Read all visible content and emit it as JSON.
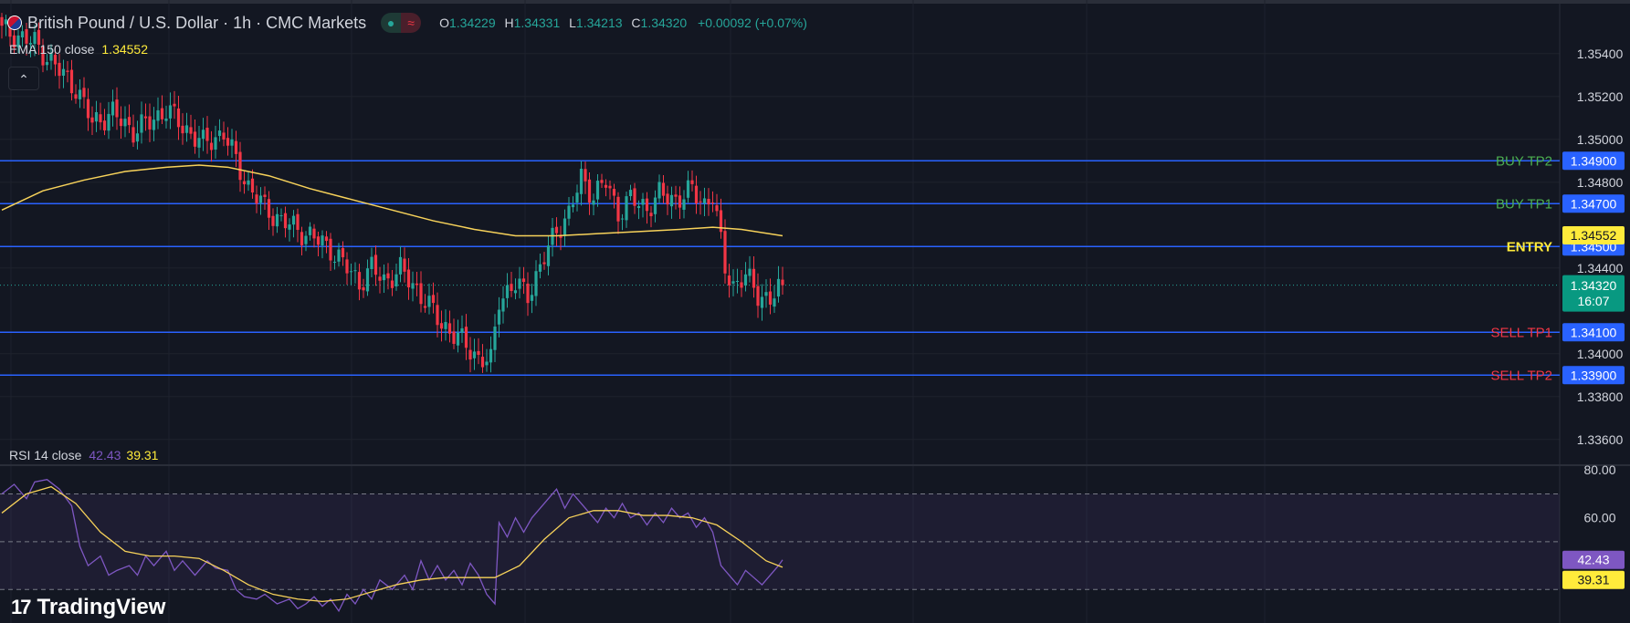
{
  "header": {
    "symbol_title": "British Pound / U.S. Dollar · 1h · CMC Markets",
    "open_label": "O",
    "open": "1.34229",
    "high_label": "H",
    "high": "1.34331",
    "low_label": "L",
    "low": "1.34213",
    "close_label": "C",
    "close": "1.34320",
    "change": "+0.00092 (+0.07%)"
  },
  "ema_legend": {
    "label": "EMA 150 close",
    "value": "1.34552"
  },
  "rsi_legend": {
    "label": "RSI 14 close",
    "value": "42.43",
    "ma_value": "39.31"
  },
  "branding": {
    "logo_text": "TradingView",
    "logo_mark": "17"
  },
  "colors": {
    "background": "#131722",
    "up": "#26a69a",
    "down": "#f23645",
    "ema": "#f7d25a",
    "level_line": "#2962ff",
    "rsi": "#7e57c2",
    "rsi_ma": "#f7d25a",
    "buy_label": "#4caf50",
    "sell_label": "#f23645",
    "entry_label": "#ffeb3b"
  },
  "chart_data": [
    {
      "type": "candlestick",
      "title": "British Pound / U.S. Dollar · 1h · CMC Markets",
      "y_ticks": [
        "1.35400",
        "1.35200",
        "1.35000",
        "1.34800",
        "1.34400",
        "1.34000",
        "1.33800",
        "1.33600"
      ],
      "y_tick_values": [
        1.354,
        1.352,
        1.35,
        1.348,
        1.344,
        1.34,
        1.338,
        1.336
      ],
      "ylim": [
        1.3348,
        1.3565
      ],
      "grid": true,
      "current_price": {
        "value": 1.3432,
        "label": "1.34320",
        "countdown": "16:07"
      },
      "ema150_last": {
        "value": 1.34552,
        "label": "1.34552"
      },
      "levels": [
        {
          "name": "BUY TP2",
          "value": 1.349,
          "label": "1.34900",
          "side": "buy"
        },
        {
          "name": "BUY TP1",
          "value": 1.347,
          "label": "1.34700",
          "side": "buy"
        },
        {
          "name": "ENTRY",
          "value": 1.345,
          "label": "1.34500",
          "side": "entry"
        },
        {
          "name": "SELL TP1",
          "value": 1.341,
          "label": "1.34100",
          "side": "sell"
        },
        {
          "name": "SELL TP2",
          "value": 1.339,
          "label": "1.33900",
          "side": "sell"
        }
      ],
      "close_path": [
        [
          0,
          1.3551
        ],
        [
          8,
          1.3545
        ],
        [
          14,
          1.3532
        ],
        [
          18,
          1.3524
        ],
        [
          22,
          1.3508
        ],
        [
          27,
          1.3512
        ],
        [
          32,
          1.3504
        ],
        [
          36,
          1.3508
        ],
        [
          40,
          1.3514
        ],
        [
          44,
          1.3506
        ],
        [
          49,
          1.3498
        ],
        [
          54,
          1.3503
        ],
        [
          57,
          1.349
        ],
        [
          60,
          1.3478
        ],
        [
          64,
          1.3468
        ],
        [
          68,
          1.3462
        ],
        [
          72,
          1.3458
        ],
        [
          76,
          1.3454
        ],
        [
          80,
          1.3449
        ],
        [
          84,
          1.344
        ],
        [
          87,
          1.3433
        ],
        [
          90,
          1.344
        ],
        [
          93,
          1.3434
        ],
        [
          97,
          1.3439
        ],
        [
          101,
          1.343
        ],
        [
          104,
          1.3422
        ],
        [
          107,
          1.3414
        ],
        [
          110,
          1.3409
        ],
        [
          113,
          1.3404
        ],
        [
          116,
          1.3398
        ],
        [
          119,
          1.3396
        ],
        [
          121,
          1.3426
        ],
        [
          125,
          1.3432
        ],
        [
          128,
          1.3428
        ],
        [
          131,
          1.344
        ],
        [
          135,
          1.3458
        ],
        [
          138,
          1.3465
        ],
        [
          141,
          1.3482
        ],
        [
          144,
          1.3474
        ],
        [
          147,
          1.348
        ],
        [
          150,
          1.3466
        ],
        [
          153,
          1.3472
        ],
        [
          157,
          1.3468
        ],
        [
          160,
          1.3474
        ],
        [
          164,
          1.3472
        ],
        [
          168,
          1.3476
        ],
        [
          171,
          1.347
        ],
        [
          173,
          1.3474
        ],
        [
          176,
          1.344
        ],
        [
          178,
          1.3432
        ],
        [
          181,
          1.3436
        ],
        [
          184,
          1.3428
        ],
        [
          187,
          1.3425
        ],
        [
          190,
          1.3432
        ]
      ],
      "ema150": [
        [
          0,
          1.3467
        ],
        [
          10,
          1.3476
        ],
        [
          20,
          1.3481
        ],
        [
          30,
          1.3485
        ],
        [
          40,
          1.3487
        ],
        [
          48,
          1.3488
        ],
        [
          55,
          1.3487
        ],
        [
          65,
          1.3483
        ],
        [
          75,
          1.3477
        ],
        [
          85,
          1.3472
        ],
        [
          95,
          1.3467
        ],
        [
          105,
          1.3462
        ],
        [
          115,
          1.3458
        ],
        [
          125,
          1.3455
        ],
        [
          135,
          1.3455
        ],
        [
          145,
          1.3456
        ],
        [
          155,
          1.3457
        ],
        [
          165,
          1.3458
        ],
        [
          173,
          1.3459
        ],
        [
          180,
          1.3458
        ],
        [
          190,
          1.3455
        ]
      ]
    },
    {
      "type": "line",
      "title": "RSI 14 close",
      "y_ticks": [
        "80.00",
        "60.00"
      ],
      "y_tick_values": [
        80,
        60
      ],
      "ylim": [
        16,
        82
      ],
      "bands": [
        70,
        50,
        30
      ],
      "last_values": {
        "rsi": "42.43",
        "rsi_ma": "39.31"
      },
      "series": [
        {
          "values": [
            [
              0,
              70
            ],
            [
              3,
              74
            ],
            [
              6,
              68
            ],
            [
              8,
              75
            ],
            [
              11,
              76
            ],
            [
              14,
              72
            ],
            [
              17,
              65
            ],
            [
              19,
              48
            ],
            [
              21,
              40
            ],
            [
              24,
              44
            ],
            [
              26,
              36
            ],
            [
              28,
              38
            ],
            [
              31,
              40
            ],
            [
              33,
              36
            ],
            [
              35,
              44
            ],
            [
              37,
              40
            ],
            [
              40,
              46
            ],
            [
              42,
              38
            ],
            [
              44,
              42
            ],
            [
              47,
              36
            ],
            [
              50,
              42
            ],
            [
              52,
              39
            ],
            [
              55,
              38
            ],
            [
              57,
              30
            ],
            [
              59,
              27
            ],
            [
              62,
              26
            ],
            [
              64,
              28
            ],
            [
              67,
              24
            ],
            [
              70,
              26
            ],
            [
              72,
              22
            ],
            [
              74,
              24
            ],
            [
              76,
              27
            ],
            [
              78,
              23
            ],
            [
              80,
              26
            ],
            [
              82,
              21
            ],
            [
              84,
              28
            ],
            [
              86,
              24
            ],
            [
              88,
              30
            ],
            [
              90,
              26
            ],
            [
              92,
              34
            ],
            [
              95,
              30
            ],
            [
              98,
              36
            ],
            [
              100,
              30
            ],
            [
              102,
              42
            ],
            [
              104,
              34
            ],
            [
              106,
              40
            ],
            [
              108,
              34
            ],
            [
              110,
              38
            ],
            [
              112,
              32
            ],
            [
              114,
              41
            ],
            [
              116,
              36
            ],
            [
              118,
              28
            ],
            [
              120,
              24
            ],
            [
              121,
              58
            ],
            [
              123,
              52
            ],
            [
              125,
              60
            ],
            [
              127,
              54
            ],
            [
              129,
              60
            ],
            [
              131,
              64
            ],
            [
              133,
              68
            ],
            [
              135,
              72
            ],
            [
              137,
              64
            ],
            [
              139,
              70
            ],
            [
              141,
              66
            ],
            [
              143,
              62
            ],
            [
              145,
              58
            ],
            [
              147,
              64
            ],
            [
              149,
              60
            ],
            [
              151,
              66
            ],
            [
              153,
              60
            ],
            [
              155,
              62
            ],
            [
              157,
              57
            ],
            [
              159,
              62
            ],
            [
              161,
              58
            ],
            [
              163,
              64
            ],
            [
              165,
              60
            ],
            [
              167,
              62
            ],
            [
              169,
              56
            ],
            [
              171,
              60
            ],
            [
              173,
              54
            ],
            [
              175,
              40
            ],
            [
              177,
              36
            ],
            [
              179,
              32
            ],
            [
              181,
              38
            ],
            [
              183,
              35
            ],
            [
              185,
              32
            ],
            [
              187,
              36
            ],
            [
              189,
              40
            ],
            [
              190,
              42.43
            ]
          ]
        },
        {
          "values": [
            [
              0,
              62
            ],
            [
              6,
              70
            ],
            [
              12,
              73
            ],
            [
              18,
              66
            ],
            [
              24,
              54
            ],
            [
              30,
              46
            ],
            [
              36,
              44
            ],
            [
              42,
              44
            ],
            [
              48,
              43
            ],
            [
              54,
              38
            ],
            [
              60,
              32
            ],
            [
              66,
              28
            ],
            [
              72,
              26
            ],
            [
              78,
              25
            ],
            [
              84,
              26
            ],
            [
              90,
              29
            ],
            [
              96,
              32
            ],
            [
              102,
              34
            ],
            [
              108,
              35
            ],
            [
              114,
              35
            ],
            [
              120,
              35
            ],
            [
              126,
              40
            ],
            [
              132,
              51
            ],
            [
              138,
              60
            ],
            [
              144,
              63
            ],
            [
              150,
              63
            ],
            [
              156,
              61
            ],
            [
              162,
              61
            ],
            [
              168,
              60
            ],
            [
              174,
              57
            ],
            [
              180,
              50
            ],
            [
              186,
              42
            ],
            [
              190,
              39.31
            ]
          ]
        }
      ]
    }
  ]
}
